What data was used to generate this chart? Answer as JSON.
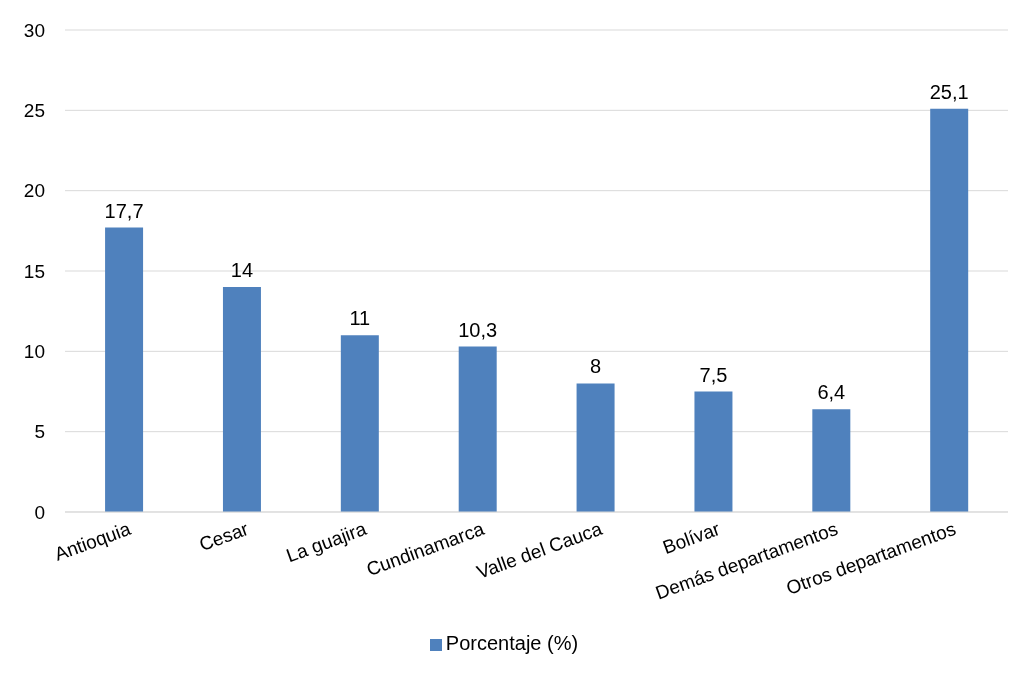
{
  "chart_data": {
    "type": "bar",
    "categories": [
      "Antioquia",
      "Cesar",
      "La guajira",
      "Cundinamarca",
      "Valle del Cauca",
      "Bolívar",
      "Demás departamentos",
      "Otros departamentos"
    ],
    "series": [
      {
        "name": "Porcentaje (%)",
        "color": "#4f81bd",
        "values": [
          17.7,
          14,
          11,
          10.3,
          8,
          7.5,
          6.4,
          25.1
        ],
        "value_labels": [
          "17,7",
          "14",
          "11",
          "10,3",
          "8",
          "7,5",
          "6,4",
          "25,1"
        ]
      }
    ],
    "ylim": [
      0,
      30
    ],
    "yticks": [
      0,
      5,
      10,
      15,
      20,
      25,
      30
    ],
    "grid": "y",
    "legend": "bottom"
  }
}
